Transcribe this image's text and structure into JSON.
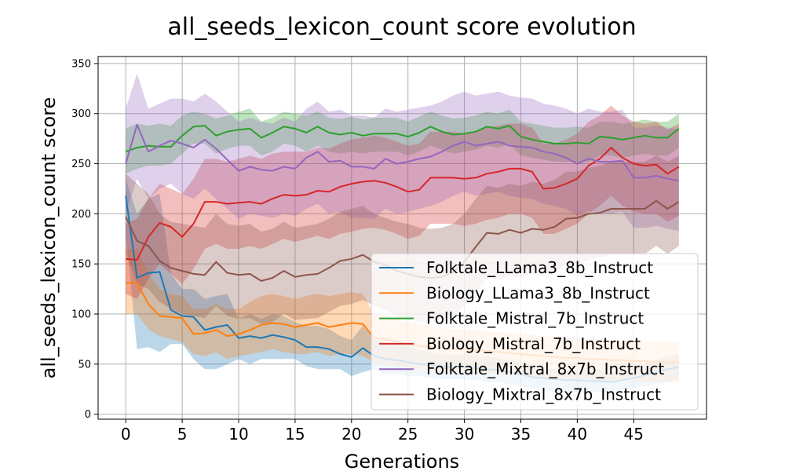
{
  "chart_data": {
    "type": "line",
    "title": "all_seeds_lexicon_count score evolution",
    "xlabel": "Generations",
    "ylabel": "all_seeds_lexicon_count score",
    "xlim": [
      -2.45,
      51.45
    ],
    "ylim": [
      -5,
      357
    ],
    "xticks": [
      0,
      5,
      10,
      15,
      20,
      25,
      30,
      35,
      40,
      45
    ],
    "yticks": [
      0,
      50,
      100,
      150,
      200,
      250,
      300,
      350
    ],
    "grid": true,
    "legend_position": "lower-right",
    "series": [
      {
        "name": "Folktale_LLama3_8b_Instruct",
        "color": "#1f77b4",
        "x": [
          0,
          1,
          2,
          3,
          4,
          5,
          6,
          7,
          8,
          9,
          10,
          11,
          12,
          13,
          14,
          15,
          16,
          17,
          18,
          19,
          20,
          21,
          22,
          23,
          24,
          25,
          26,
          27,
          28,
          29,
          30,
          31,
          32,
          33,
          34,
          35,
          36,
          37,
          38,
          39,
          40,
          41,
          42,
          43,
          44,
          45,
          46,
          47,
          48,
          49
        ],
        "values": [
          218,
          136,
          141,
          142,
          104,
          98,
          97,
          84,
          87,
          89,
          76,
          78,
          76,
          79,
          77,
          74,
          67,
          67,
          65,
          60,
          57,
          66,
          58,
          55,
          54,
          52,
          50,
          49,
          48,
          47,
          47,
          46,
          45,
          44,
          42,
          40,
          37,
          36,
          35,
          34,
          34,
          33,
          33,
          32,
          34,
          36,
          39,
          42,
          45,
          47
        ],
        "lower": [
          180,
          65,
          67,
          62,
          70,
          70,
          55,
          45,
          45,
          50,
          55,
          50,
          55,
          55,
          55,
          55,
          48,
          45,
          45,
          45,
          38,
          42,
          45,
          40,
          40,
          38,
          38,
          36,
          35,
          35,
          35,
          34,
          32,
          32,
          30,
          28,
          26,
          24,
          22,
          22,
          22,
          22,
          22,
          22,
          24,
          26,
          28,
          30,
          32,
          34
        ],
        "upper": [
          235,
          200,
          215,
          220,
          140,
          125,
          125,
          115,
          118,
          120,
          95,
          100,
          95,
          100,
          98,
          92,
          88,
          88,
          85,
          78,
          74,
          88,
          75,
          72,
          70,
          68,
          64,
          62,
          60,
          60,
          60,
          58,
          58,
          56,
          54,
          52,
          48,
          46,
          45,
          44,
          44,
          43,
          43,
          42,
          44,
          46,
          50,
          54,
          58,
          60
        ]
      },
      {
        "name": "Biology_LLama3_8b_Instruct",
        "color": "#ff7f0e",
        "x": [
          0,
          1,
          2,
          3,
          4,
          5,
          6,
          7,
          8,
          9,
          10,
          11,
          12,
          13,
          14,
          15,
          16,
          17,
          18,
          19,
          20,
          21,
          22,
          23,
          24,
          25,
          26,
          27,
          28,
          29,
          30,
          31,
          32,
          33,
          34,
          35,
          36,
          37,
          38,
          39,
          40,
          41,
          42,
          43,
          44,
          45,
          46,
          47,
          48,
          49
        ],
        "values": [
          131,
          131,
          110,
          98,
          97,
          96,
          80,
          81,
          84,
          78,
          80,
          84,
          89,
          91,
          90,
          87,
          89,
          91,
          87,
          89,
          91,
          90,
          76,
          75,
          72,
          70,
          68,
          67,
          66,
          65,
          65,
          64,
          63,
          62,
          61,
          60,
          59,
          58,
          57,
          56,
          56,
          55,
          55,
          54,
          54,
          53,
          53,
          52,
          52,
          52
        ],
        "lower": [
          100,
          100,
          85,
          78,
          75,
          72,
          60,
          58,
          62,
          55,
          58,
          60,
          62,
          65,
          62,
          60,
          60,
          62,
          58,
          60,
          60,
          58,
          52,
          50,
          48,
          46,
          45,
          44,
          43,
          42,
          42,
          41,
          40,
          40,
          39,
          38,
          37,
          36,
          35,
          35,
          35,
          34,
          34,
          33,
          33,
          33,
          32,
          32,
          32,
          32
        ],
        "upper": [
          165,
          165,
          140,
          125,
          120,
          118,
          105,
          105,
          110,
          105,
          105,
          112,
          118,
          120,
          118,
          115,
          118,
          120,
          118,
          120,
          122,
          120,
          100,
          98,
          95,
          92,
          90,
          88,
          86,
          85,
          85,
          84,
          83,
          82,
          81,
          80,
          79,
          78,
          77,
          76,
          76,
          75,
          75,
          74,
          74,
          73,
          73,
          72,
          72,
          72
        ]
      },
      {
        "name": "Folktale_Mistral_7b_Instruct",
        "color": "#2ca02c",
        "x": [
          0,
          1,
          2,
          3,
          4,
          5,
          6,
          7,
          8,
          9,
          10,
          11,
          12,
          13,
          14,
          15,
          16,
          17,
          18,
          19,
          20,
          21,
          22,
          23,
          24,
          25,
          26,
          27,
          28,
          29,
          30,
          31,
          32,
          33,
          34,
          35,
          36,
          37,
          38,
          39,
          40,
          41,
          42,
          43,
          44,
          45,
          46,
          47,
          48,
          49
        ],
        "values": [
          262,
          266,
          268,
          267,
          267,
          278,
          287,
          288,
          278,
          282,
          284,
          285,
          276,
          281,
          287,
          285,
          281,
          287,
          281,
          279,
          281,
          278,
          280,
          280,
          280,
          277,
          281,
          287,
          282,
          279,
          280,
          282,
          287,
          285,
          288,
          277,
          274,
          272,
          270,
          270,
          271,
          270,
          277,
          276,
          274,
          276,
          278,
          276,
          276,
          285
        ],
        "lower": [
          240,
          245,
          248,
          248,
          250,
          260,
          270,
          270,
          260,
          265,
          268,
          268,
          258,
          262,
          270,
          268,
          262,
          268,
          262,
          260,
          262,
          260,
          262,
          262,
          262,
          258,
          262,
          268,
          264,
          260,
          262,
          264,
          268,
          266,
          270,
          258,
          256,
          254,
          252,
          252,
          252,
          252,
          258,
          258,
          256,
          258,
          260,
          258,
          258,
          266
        ],
        "upper": [
          285,
          290,
          288,
          290,
          288,
          298,
          302,
          300,
          295,
          298,
          302,
          305,
          292,
          296,
          302,
          300,
          298,
          302,
          296,
          295,
          297,
          294,
          296,
          296,
          296,
          292,
          297,
          302,
          298,
          295,
          296,
          298,
          302,
          300,
          304,
          292,
          290,
          288,
          286,
          286,
          287,
          286,
          292,
          292,
          290,
          292,
          294,
          292,
          292,
          300
        ]
      },
      {
        "name": "Biology_Mistral_7b_Instruct",
        "color": "#d62728",
        "x": [
          0,
          1,
          2,
          3,
          4,
          5,
          6,
          7,
          8,
          9,
          10,
          11,
          12,
          13,
          14,
          15,
          16,
          17,
          18,
          19,
          20,
          21,
          22,
          23,
          24,
          25,
          26,
          27,
          28,
          29,
          30,
          31,
          32,
          33,
          34,
          35,
          36,
          37,
          38,
          39,
          40,
          41,
          42,
          43,
          44,
          45,
          46,
          47,
          48,
          49
        ],
        "values": [
          155,
          154,
          177,
          191,
          187,
          177,
          190,
          212,
          212,
          210,
          211,
          212,
          210,
          215,
          219,
          218,
          219,
          223,
          222,
          227,
          230,
          232,
          233,
          231,
          227,
          222,
          224,
          236,
          236,
          236,
          235,
          236,
          240,
          242,
          245,
          245,
          242,
          225,
          226,
          230,
          235,
          248,
          255,
          266,
          256,
          250,
          248,
          249,
          240,
          247
        ],
        "lower": [
          120,
          115,
          135,
          150,
          140,
          130,
          145,
          165,
          170,
          165,
          165,
          168,
          165,
          170,
          175,
          172,
          175,
          178,
          175,
          180,
          182,
          185,
          186,
          184,
          180,
          175,
          178,
          190,
          190,
          190,
          188,
          190,
          194,
          196,
          200,
          200,
          196,
          180,
          180,
          185,
          190,
          200,
          208,
          218,
          208,
          202,
          200,
          200,
          192,
          198
        ],
        "upper": [
          190,
          195,
          215,
          230,
          225,
          220,
          235,
          255,
          255,
          252,
          255,
          258,
          255,
          260,
          262,
          262,
          262,
          266,
          265,
          270,
          274,
          276,
          278,
          276,
          272,
          268,
          270,
          282,
          282,
          282,
          280,
          282,
          286,
          288,
          290,
          290,
          286,
          270,
          270,
          274,
          280,
          292,
          298,
          308,
          298,
          292,
          290,
          292,
          284,
          290
        ]
      },
      {
        "name": "Folktale_Mixtral_8x7b_Instruct",
        "color": "#9467bd",
        "x": [
          0,
          1,
          2,
          3,
          4,
          5,
          6,
          7,
          8,
          9,
          10,
          11,
          12,
          13,
          14,
          15,
          16,
          17,
          18,
          19,
          20,
          21,
          22,
          23,
          24,
          25,
          26,
          27,
          28,
          29,
          30,
          31,
          32,
          33,
          34,
          35,
          36,
          37,
          38,
          39,
          40,
          41,
          42,
          43,
          44,
          45,
          46,
          47,
          48,
          49
        ],
        "values": [
          250,
          289,
          262,
          268,
          273,
          270,
          266,
          274,
          265,
          254,
          243,
          247,
          244,
          243,
          247,
          245,
          256,
          262,
          252,
          253,
          247,
          247,
          245,
          255,
          250,
          252,
          255,
          257,
          262,
          268,
          272,
          268,
          270,
          272,
          268,
          267,
          266,
          262,
          260,
          256,
          250,
          255,
          252,
          252,
          253,
          236,
          236,
          238,
          235,
          233
        ],
        "lower": [
          200,
          235,
          215,
          225,
          230,
          220,
          215,
          225,
          215,
          205,
          195,
          200,
          198,
          196,
          200,
          198,
          205,
          210,
          200,
          202,
          196,
          196,
          195,
          205,
          200,
          202,
          205,
          208,
          212,
          218,
          222,
          218,
          220,
          222,
          218,
          216,
          215,
          210,
          208,
          205,
          198,
          203,
          200,
          200,
          202,
          186,
          186,
          188,
          185,
          183
        ],
        "upper": [
          305,
          340,
          305,
          310,
          315,
          315,
          312,
          320,
          312,
          302,
          292,
          296,
          292,
          290,
          296,
          292,
          305,
          312,
          302,
          304,
          298,
          298,
          296,
          305,
          302,
          304,
          306,
          308,
          312,
          318,
          322,
          318,
          320,
          322,
          318,
          316,
          315,
          310,
          308,
          305,
          300,
          305,
          302,
          302,
          304,
          286,
          286,
          288,
          286,
          284
        ]
      },
      {
        "name": "Biology_Mixtral_8x7b_Instruct",
        "color": "#8c564b",
        "x": [
          0,
          1,
          2,
          3,
          4,
          5,
          6,
          7,
          8,
          9,
          10,
          11,
          12,
          13,
          14,
          15,
          16,
          17,
          18,
          19,
          20,
          21,
          22,
          23,
          24,
          25,
          26,
          27,
          28,
          29,
          30,
          31,
          32,
          33,
          34,
          35,
          36,
          37,
          38,
          39,
          40,
          41,
          42,
          43,
          44,
          45,
          46,
          47,
          48,
          49
        ],
        "values": [
          197,
          173,
          168,
          153,
          146,
          143,
          140,
          139,
          152,
          141,
          139,
          140,
          133,
          136,
          143,
          137,
          139,
          140,
          146,
          153,
          155,
          159,
          152,
          149,
          143,
          140,
          137,
          136,
          137,
          142,
          152,
          167,
          181,
          180,
          184,
          181,
          185,
          184,
          187,
          195,
          196,
          200,
          201,
          205,
          205,
          205,
          205,
          213,
          205,
          212
        ],
        "lower": [
          160,
          130,
          125,
          112,
          105,
          100,
          98,
          96,
          108,
          98,
          95,
          96,
          90,
          92,
          100,
          94,
          95,
          96,
          102,
          108,
          110,
          114,
          108,
          104,
          98,
          96,
          92,
          92,
          94,
          98,
          108,
          122,
          136,
          134,
          138,
          136,
          140,
          138,
          142,
          150,
          150,
          154,
          156,
          160,
          160,
          160,
          160,
          168,
          160,
          168
        ],
        "upper": [
          240,
          230,
          220,
          200,
          192,
          190,
          188,
          186,
          200,
          190,
          188,
          190,
          182,
          185,
          192,
          186,
          188,
          190,
          195,
          202,
          205,
          208,
          200,
          196,
          192,
          190,
          186,
          185,
          186,
          190,
          200,
          215,
          228,
          226,
          230,
          228,
          232,
          230,
          234,
          242,
          242,
          246,
          248,
          252,
          252,
          252,
          252,
          258,
          252,
          258
        ]
      }
    ]
  }
}
